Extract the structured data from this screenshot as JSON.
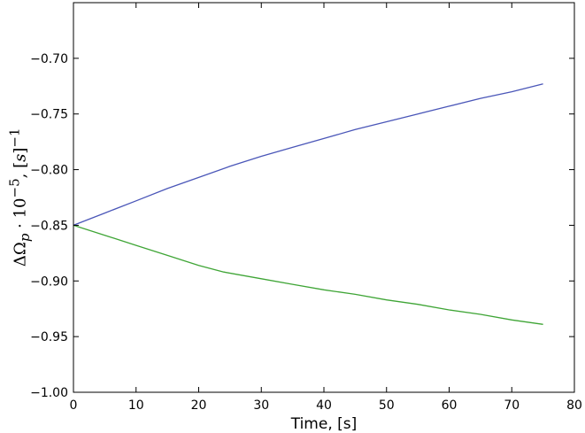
{
  "chart_data": {
    "type": "line",
    "xlabel": "Time, [s]",
    "ylabel": "ΔΩp · 10^−5, [s]^−1",
    "xlim": [
      0,
      80
    ],
    "ylim": [
      -1.0,
      -0.65
    ],
    "x_ticks": [
      0,
      10,
      20,
      30,
      40,
      50,
      60,
      70,
      80
    ],
    "y_ticks": [
      -1.0,
      -0.95,
      -0.9,
      -0.85,
      -0.8,
      -0.75,
      -0.7
    ],
    "x_tick_labels": [
      "0",
      "10",
      "20",
      "30",
      "40",
      "50",
      "60",
      "70",
      "80"
    ],
    "y_tick_labels": [
      "−1.00",
      "−0.95",
      "−0.90",
      "−0.85",
      "−0.80",
      "−0.75",
      "−0.70"
    ],
    "grid": false,
    "series": [
      {
        "color": "#4a56b8",
        "x": [
          0,
          5,
          10,
          15,
          20,
          25,
          30,
          35,
          40,
          45,
          50,
          55,
          60,
          65,
          70,
          75
        ],
        "y": [
          -0.85,
          -0.839,
          -0.828,
          -0.817,
          -0.807,
          -0.797,
          -0.788,
          -0.78,
          -0.772,
          -0.764,
          -0.757,
          -0.75,
          -0.743,
          -0.736,
          -0.73,
          -0.723
        ]
      },
      {
        "color": "#3fa536",
        "x": [
          0,
          5,
          10,
          15,
          20,
          24,
          30,
          35,
          40,
          45,
          50,
          55,
          60,
          65,
          70,
          75
        ],
        "y": [
          -0.85,
          -0.859,
          -0.868,
          -0.877,
          -0.886,
          -0.892,
          -0.898,
          -0.903,
          -0.908,
          -0.912,
          -0.917,
          -0.921,
          -0.926,
          -0.93,
          -0.935,
          -0.939
        ]
      }
    ]
  }
}
